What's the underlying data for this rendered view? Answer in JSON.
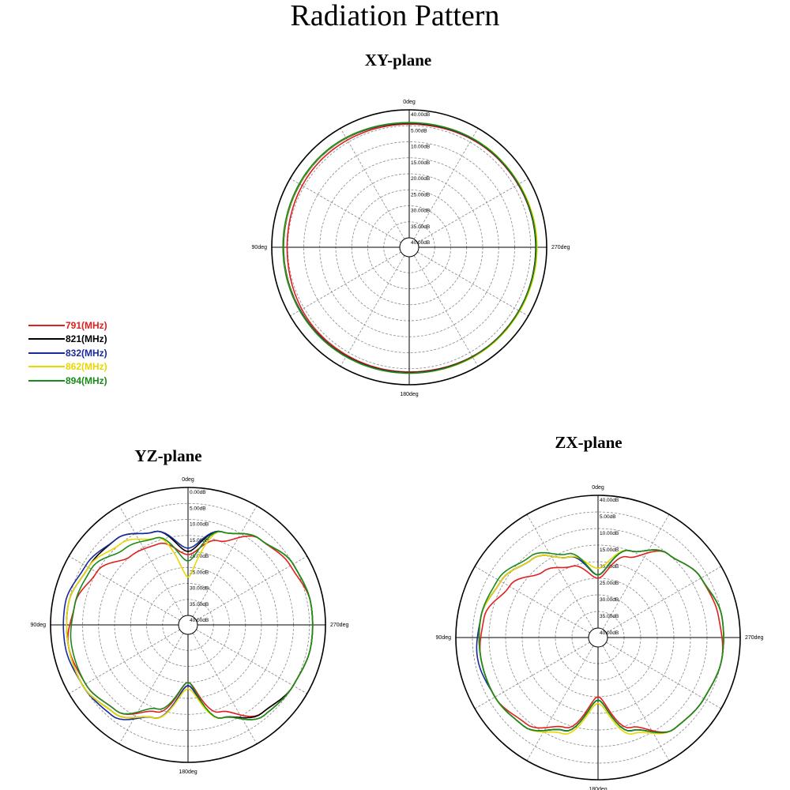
{
  "page": {
    "title": "Radiation Pattern"
  },
  "legend": [
    {
      "label": "791(MHz)",
      "color": "#e02020"
    },
    {
      "label": "821(MHz)",
      "color": "#000000"
    },
    {
      "label": "832(MHz)",
      "color": "#1a2a9a"
    },
    {
      "label": "862(MHz)",
      "color": "#e8d800"
    },
    {
      "label": "894(MHz)",
      "color": "#1a8a1a"
    }
  ],
  "chart_data": [
    {
      "type": "polar",
      "title": "XY-plane",
      "angle_labels": [
        "0deg",
        "90deg",
        "180deg",
        "270deg"
      ],
      "radial_ticks": [
        "40.00dB",
        "5.00dB",
        "10.00dB",
        "15.00dB",
        "20.00dB",
        "25.00dB",
        "30.00dB",
        "35.00dB",
        "40.00dB"
      ],
      "r_unit": "dB",
      "series": [
        {
          "name": "791(MHz)",
          "angles": [
            0,
            45,
            90,
            135,
            180,
            225,
            270,
            315,
            360
          ],
          "values": [
            -4.5,
            -4.2,
            -4.8,
            -4.0,
            -4.0,
            -3.4,
            -3.4,
            -3.8,
            -4.5
          ]
        },
        {
          "name": "821(MHz)",
          "angles": [
            0,
            45,
            90,
            135,
            180,
            225,
            270,
            315,
            360
          ],
          "values": [
            -4.2,
            -3.4,
            -3.7,
            -3.6,
            -3.8,
            -3.3,
            -3.4,
            -3.6,
            -4.2
          ]
        },
        {
          "name": "832(MHz)",
          "angles": [
            0,
            45,
            90,
            135,
            180,
            225,
            270,
            315,
            360
          ],
          "values": [
            -4.1,
            -3.3,
            -3.6,
            -3.5,
            -3.7,
            -3.3,
            -3.3,
            -3.6,
            -4.1
          ]
        },
        {
          "name": "862(MHz)",
          "angles": [
            0,
            45,
            90,
            135,
            180,
            225,
            270,
            315,
            360
          ],
          "values": [
            -4.0,
            -3.3,
            -3.6,
            -3.4,
            -3.6,
            -3.1,
            -3.0,
            -3.4,
            -4.0
          ]
        },
        {
          "name": "894(MHz)",
          "angles": [
            0,
            45,
            90,
            135,
            180,
            225,
            270,
            315,
            360
          ],
          "values": [
            -4.0,
            -3.2,
            -3.5,
            -3.4,
            -3.6,
            -3.3,
            -3.3,
            -3.5,
            -4.0
          ]
        }
      ]
    },
    {
      "type": "polar",
      "title": "YZ-plane",
      "angle_labels": [
        "0deg",
        "90deg",
        "180deg",
        "270deg"
      ],
      "radial_ticks": [
        "0.00dB",
        "5.00dB",
        "10.00dB",
        "15.00dB",
        "20.00dB",
        "25.00dB",
        "30.00dB",
        "35.00dB",
        "40.00dB"
      ],
      "r_unit": "dB",
      "series": [
        {
          "name": "791(MHz)",
          "angles": [
            0,
            20,
            40,
            60,
            80,
            100,
            120,
            140,
            160,
            180,
            200,
            220,
            240,
            260,
            280,
            300,
            320,
            340,
            360
          ],
          "values": [
            -21,
            -16,
            -15,
            -10,
            -7,
            -5,
            -6,
            -8,
            -14,
            -25,
            -14,
            -7,
            -5,
            -4,
            -4,
            -6,
            -8,
            -15,
            -21
          ]
        },
        {
          "name": "821(MHz)",
          "angles": [
            0,
            20,
            40,
            60,
            80,
            100,
            120,
            140,
            160,
            180,
            200,
            220,
            240,
            260,
            280,
            300,
            320,
            340,
            360
          ],
          "values": [
            -20,
            -12,
            -8,
            -7,
            -5,
            -5,
            -5,
            -7,
            -12,
            -24,
            -12,
            -7,
            -5,
            -4,
            -4,
            -5,
            -8,
            -12,
            -20
          ]
        },
        {
          "name": "832(MHz)",
          "angles": [
            0,
            20,
            40,
            60,
            80,
            100,
            120,
            140,
            160,
            180,
            200,
            220,
            240,
            260,
            280,
            300,
            320,
            340,
            360
          ],
          "values": [
            -19,
            -12,
            -8,
            -6,
            -4,
            -4,
            -5,
            -6,
            -12,
            -24,
            -12,
            -6,
            -5,
            -4,
            -4,
            -5,
            -8,
            -12,
            -19
          ]
        },
        {
          "name": "862(MHz)",
          "angles": [
            0,
            20,
            40,
            60,
            80,
            100,
            120,
            140,
            160,
            180,
            200,
            220,
            240,
            260,
            280,
            300,
            320,
            340,
            360
          ],
          "values": [
            -28,
            -14,
            -10,
            -7,
            -5,
            -5,
            -5,
            -7,
            -12,
            -23,
            -12,
            -6,
            -5,
            -4,
            -4,
            -5,
            -8,
            -12,
            -28
          ]
        },
        {
          "name": "894(MHz)",
          "angles": [
            0,
            20,
            40,
            60,
            80,
            100,
            120,
            140,
            160,
            180,
            200,
            220,
            240,
            260,
            280,
            300,
            320,
            340,
            360
          ],
          "values": [
            -23,
            -14,
            -12,
            -8,
            -7,
            -6,
            -6,
            -8,
            -15,
            -25,
            -12,
            -6,
            -5,
            -4,
            -4,
            -5,
            -8,
            -12,
            -23
          ]
        }
      ]
    },
    {
      "type": "polar",
      "title": "ZX-plane",
      "angle_labels": [
        "0deg",
        "90deg",
        "180deg",
        "270deg"
      ],
      "radial_ticks": [
        "40.00dB",
        "5.00dB",
        "10.00dB",
        "15.00dB",
        "20.00dB",
        "25.00dB",
        "30.00dB",
        "35.00dB",
        "40.00dB"
      ],
      "r_unit": "dB",
      "series": [
        {
          "name": "791(MHz)",
          "angles": [
            0,
            20,
            40,
            60,
            80,
            100,
            120,
            140,
            160,
            180,
            200,
            220,
            240,
            260,
            280,
            300,
            320,
            340,
            360
          ],
          "values": [
            -25,
            -20,
            -17,
            -12,
            -8,
            -7,
            -7,
            -9,
            -14,
            -25,
            -14,
            -7,
            -6,
            -5,
            -6,
            -7,
            -10,
            -17,
            -25
          ]
        },
        {
          "name": "821(MHz)",
          "angles": [
            0,
            20,
            40,
            60,
            80,
            100,
            120,
            140,
            160,
            180,
            200,
            220,
            240,
            260,
            280,
            300,
            320,
            340,
            360
          ],
          "values": [
            -24,
            -17,
            -12,
            -9,
            -7,
            -7,
            -7,
            -8,
            -13,
            -24,
            -13,
            -7,
            -6,
            -5,
            -5,
            -7,
            -10,
            -15,
            -24
          ]
        },
        {
          "name": "832(MHz)",
          "angles": [
            0,
            20,
            40,
            60,
            80,
            100,
            120,
            140,
            160,
            180,
            200,
            220,
            240,
            260,
            280,
            300,
            320,
            340,
            360
          ],
          "values": [
            -24,
            -17,
            -12,
            -9,
            -7,
            -6,
            -7,
            -8,
            -13,
            -24,
            -13,
            -7,
            -6,
            -5,
            -5,
            -7,
            -10,
            -15,
            -24
          ]
        },
        {
          "name": "862(MHz)",
          "angles": [
            0,
            20,
            40,
            60,
            80,
            100,
            120,
            140,
            160,
            180,
            200,
            220,
            240,
            260,
            280,
            300,
            320,
            340,
            360
          ],
          "values": [
            -22,
            -17,
            -12,
            -9,
            -7,
            -7,
            -7,
            -8,
            -12,
            -23,
            -12,
            -7,
            -6,
            -5,
            -5,
            -7,
            -10,
            -15,
            -22
          ]
        },
        {
          "name": "894(MHz)",
          "angles": [
            0,
            20,
            40,
            60,
            80,
            100,
            120,
            140,
            160,
            180,
            200,
            220,
            240,
            260,
            280,
            300,
            320,
            340,
            360
          ],
          "values": [
            -24,
            -16,
            -11,
            -8,
            -7,
            -7,
            -7,
            -8,
            -13,
            -24,
            -13,
            -7,
            -6,
            -5,
            -5,
            -7,
            -10,
            -15,
            -24
          ]
        }
      ]
    }
  ]
}
